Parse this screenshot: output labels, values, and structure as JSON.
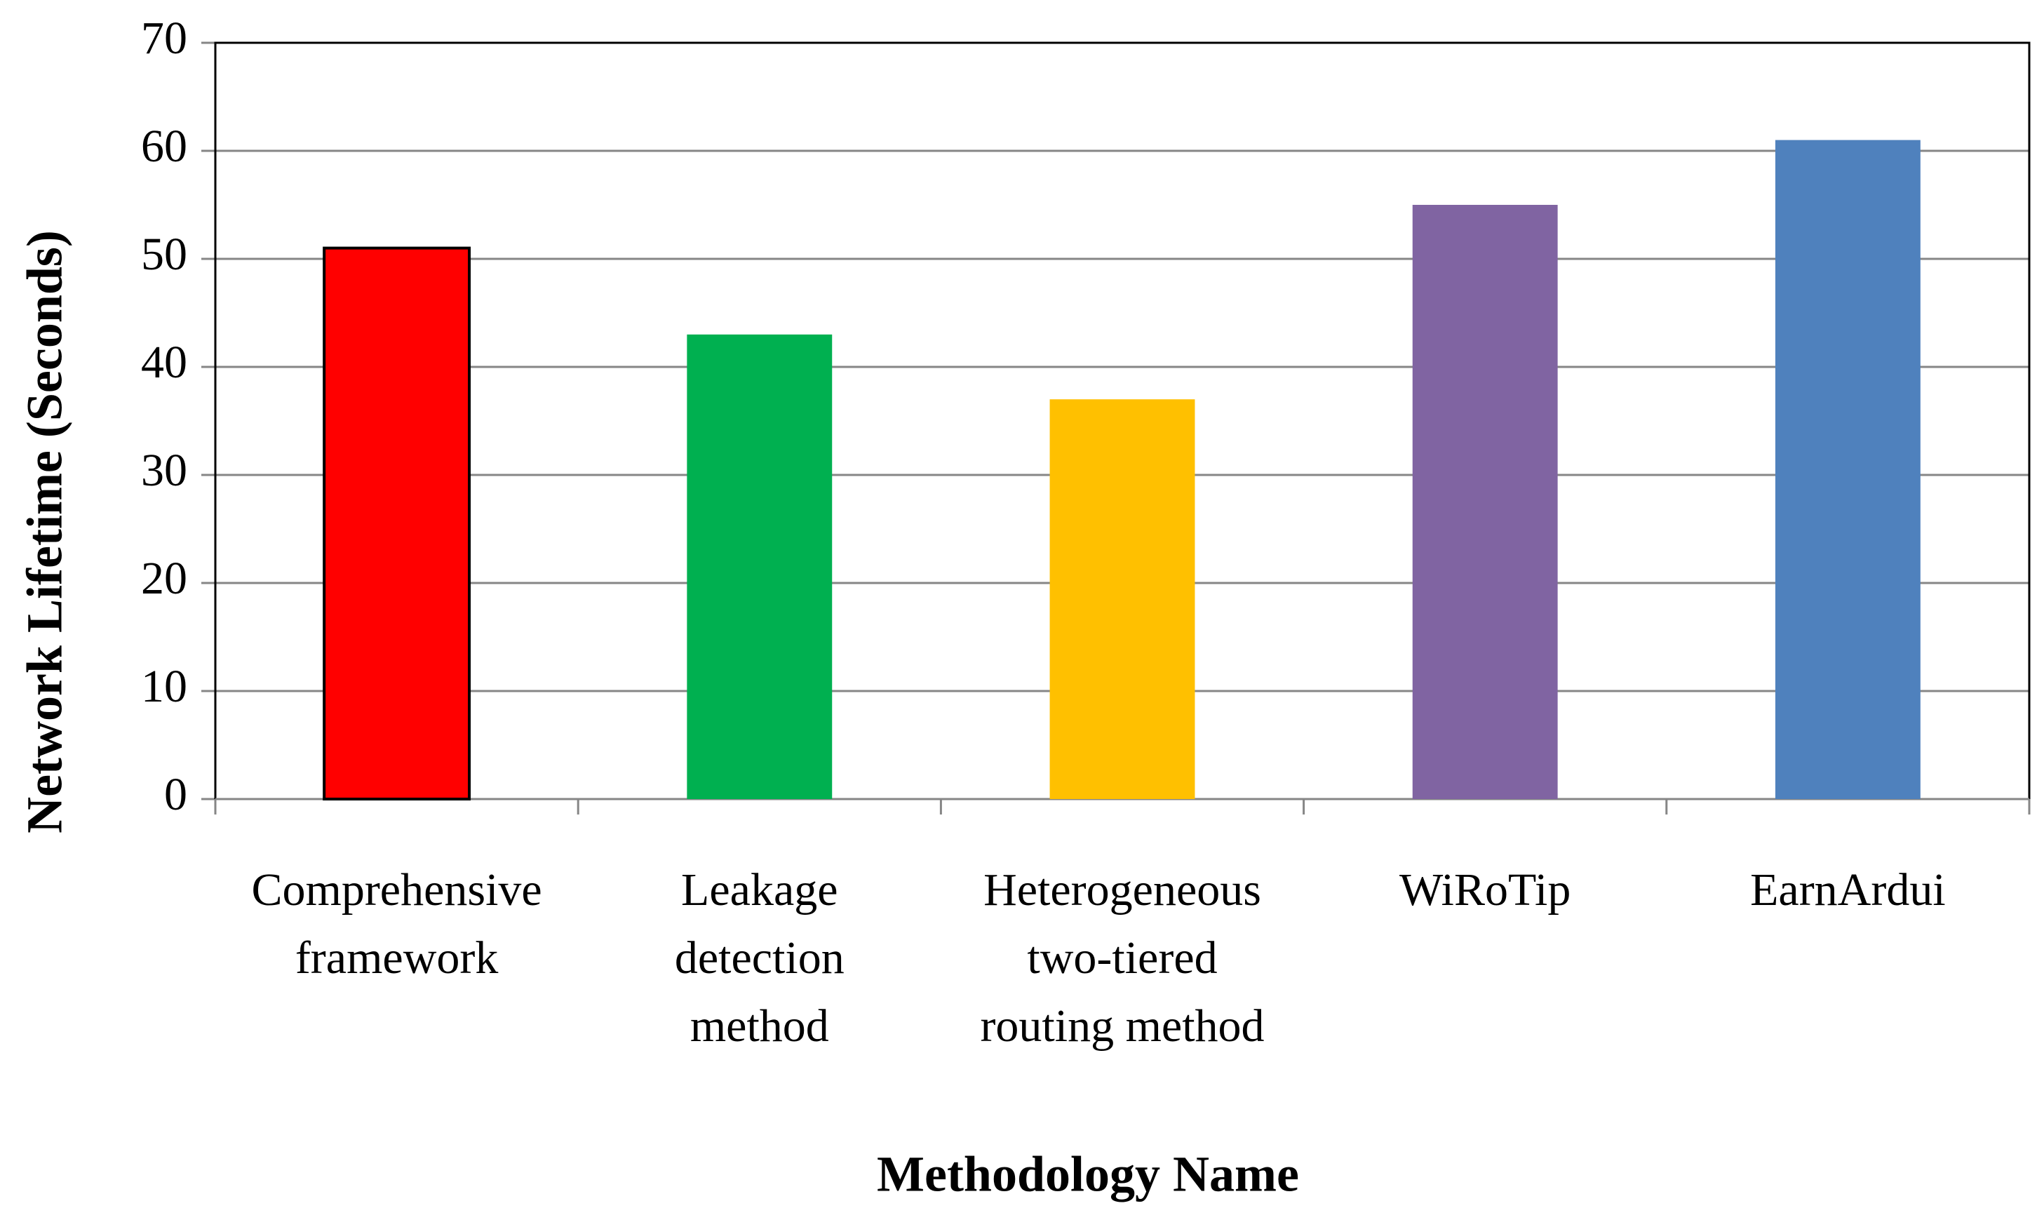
{
  "chart_data": {
    "type": "bar",
    "x_label": "Methodology Name",
    "y_label": "Network Lifetime (Seconds)",
    "categories": [
      "Comprehensive framework",
      "Leakage detection method",
      "Heterogeneous two-tiered routing method",
      "WiRoTip",
      "EarnArdui"
    ],
    "values": [
      51,
      43,
      37,
      55,
      61
    ],
    "colors": [
      "#ff0000",
      "#00b050",
      "#ffc000",
      "#8064a2",
      "#4f81bd"
    ],
    "ylim": [
      0,
      70
    ],
    "yticks": [
      0,
      10,
      20,
      30,
      40,
      50,
      60,
      70
    ],
    "grid": true
  }
}
